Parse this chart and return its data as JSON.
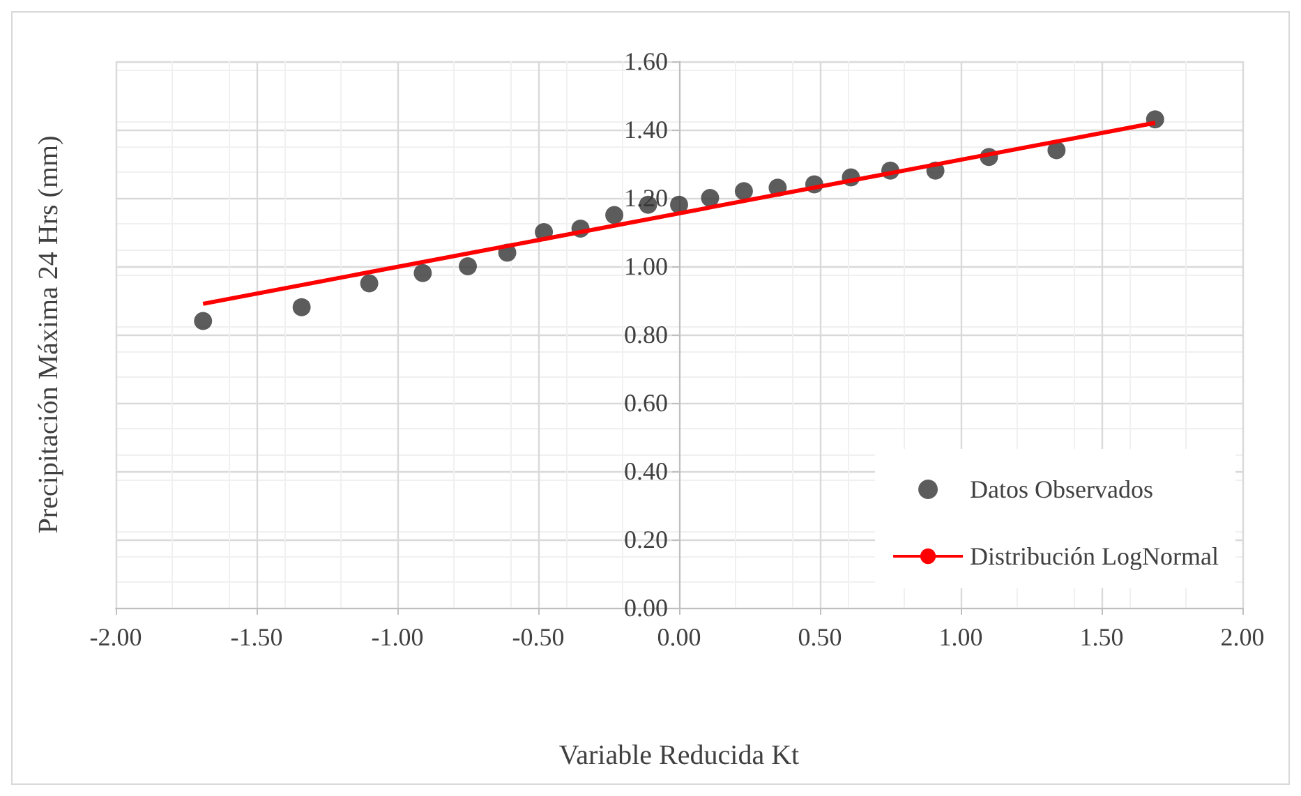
{
  "chart_data": {
    "type": "scatter",
    "xlabel": "Variable Reducida Kt",
    "ylabel": "Precipitación Máxima 24 Hrs (mm)",
    "xlim": [
      -2,
      2
    ],
    "xticks": [
      {
        "value": -2,
        "label": "-2.00"
      },
      {
        "value": -1.5,
        "label": "-1.50"
      },
      {
        "value": -1,
        "label": "-1.00"
      },
      {
        "value": -0.5,
        "label": "-0.50"
      },
      {
        "value": 0,
        "label": "0.00"
      },
      {
        "value": 0.5,
        "label": "0.50"
      },
      {
        "value": 1,
        "label": "1.00"
      },
      {
        "value": 1.5,
        "label": "1.50"
      },
      {
        "value": 2,
        "label": "2.00"
      }
    ],
    "ylim": [
      0,
      1.6
    ],
    "yticks": [
      {
        "value": 0,
        "label": "0.00"
      },
      {
        "value": 0.2,
        "label": "0.20"
      },
      {
        "value": 0.4,
        "label": "0.40"
      },
      {
        "value": 0.6,
        "label": "0.60"
      },
      {
        "value": 0.8,
        "label": "0.80"
      },
      {
        "value": 1,
        "label": "1.00"
      },
      {
        "value": 1.2,
        "label": "1.20"
      },
      {
        "value": 1.4,
        "label": "1.40"
      },
      {
        "value": 1.6,
        "label": "1.60"
      }
    ],
    "grid": true,
    "legend": "bottom right",
    "series": [
      {
        "name": "Datos Observados",
        "type": "scatter",
        "marker": "circle",
        "color": "#333333",
        "x": [
          -1.69,
          -1.34,
          -1.1,
          -0.91,
          -0.75,
          -0.61,
          -0.48,
          -0.35,
          -0.23,
          -0.11,
          0,
          0.11,
          0.23,
          0.35,
          0.48,
          0.61,
          0.75,
          0.91,
          1.1,
          1.34,
          1.69
        ],
        "values": [
          0.84,
          0.88,
          0.95,
          0.98,
          1.0,
          1.04,
          1.1,
          1.11,
          1.15,
          1.18,
          1.18,
          1.2,
          1.22,
          1.23,
          1.24,
          1.26,
          1.28,
          1.28,
          1.32,
          1.34,
          1.43
        ]
      },
      {
        "name": "Distribución LogNormal",
        "type": "line",
        "marker": "none",
        "color": "#ff0000",
        "x": [
          -1.69,
          1.69
        ],
        "values": [
          0.89,
          1.42
        ]
      }
    ]
  }
}
